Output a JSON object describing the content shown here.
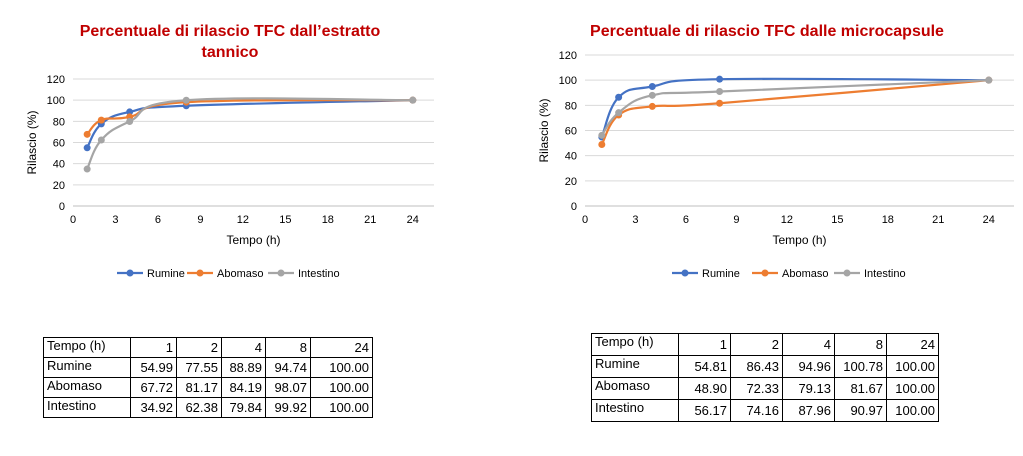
{
  "chart_data": [
    {
      "type": "line",
      "title": "Percentuale di rilascio TFC dall’estratto tannico",
      "xlabel": "Tempo (h)",
      "ylabel": "Rilascio (%)",
      "xlim": [
        0,
        25.5
      ],
      "ylim": [
        0,
        120
      ],
      "xticks": [
        "0",
        "3",
        "6",
        "9",
        "12",
        "15",
        "18",
        "21",
        "24"
      ],
      "yticks": [
        "0",
        "20",
        "40",
        "60",
        "80",
        "100",
        "120"
      ],
      "grid": true,
      "legend_position": "bottom",
      "x": [
        1,
        2,
        4,
        8,
        24
      ],
      "series": [
        {
          "name": "Rumine",
          "color": "#4472c4",
          "values": [
            54.99,
            77.55,
            88.89,
            94.74,
            100.0
          ]
        },
        {
          "name": "Abomaso",
          "color": "#ed7d31",
          "values": [
            67.72,
            81.17,
            84.19,
            98.07,
            100.0
          ]
        },
        {
          "name": "Intestino",
          "color": "#a5a5a5",
          "values": [
            34.92,
            62.38,
            79.84,
            99.92,
            100.0
          ]
        }
      ]
    },
    {
      "type": "line",
      "title": "Percentuale di rilascio TFC dalle microcapsule",
      "xlabel": "Tempo (h)",
      "ylabel": "Rilascio (%)",
      "xlim": [
        0,
        25.5
      ],
      "ylim": [
        0,
        120
      ],
      "xticks": [
        "0",
        "3",
        "6",
        "9",
        "12",
        "15",
        "18",
        "21",
        "24"
      ],
      "yticks": [
        "0",
        "20",
        "40",
        "60",
        "80",
        "100",
        "120"
      ],
      "grid": true,
      "legend_position": "bottom",
      "x": [
        1,
        2,
        4,
        8,
        24
      ],
      "series": [
        {
          "name": "Rumine",
          "color": "#4472c4",
          "values": [
            54.81,
            86.43,
            94.96,
            100.78,
            100.0
          ]
        },
        {
          "name": "Abomaso",
          "color": "#ed7d31",
          "values": [
            48.9,
            72.33,
            79.13,
            81.67,
            100.0
          ]
        },
        {
          "name": "Intestino",
          "color": "#a5a5a5",
          "values": [
            56.17,
            74.16,
            87.96,
            90.97,
            100.0
          ]
        }
      ]
    }
  ],
  "tables": [
    {
      "header_label": "Tempo (h)",
      "columns": [
        "1",
        "2",
        "4",
        "8",
        "24"
      ],
      "rows": [
        {
          "label": "Rumine",
          "cells": [
            "54.99",
            "77.55",
            "88.89",
            "94.74",
            "100.00"
          ]
        },
        {
          "label": "Abomaso",
          "cells": [
            "67.72",
            "81.17",
            "84.19",
            "98.07",
            "100.00"
          ]
        },
        {
          "label": "Intestino",
          "cells": [
            "34.92",
            "62.38",
            "79.84",
            "99.92",
            "100.00"
          ]
        }
      ]
    },
    {
      "header_label": "Tempo (h)",
      "columns": [
        "1",
        "2",
        "4",
        "8",
        "24"
      ],
      "rows": [
        {
          "label": "Rumine",
          "cells": [
            "54.81",
            "86.43",
            "94.96",
            "100.78",
            "100.00"
          ]
        },
        {
          "label": "Abomaso",
          "cells": [
            "48.90",
            "72.33",
            "79.13",
            "81.67",
            "100.00"
          ]
        },
        {
          "label": "Intestino",
          "cells": [
            "56.17",
            "74.16",
            "87.96",
            "90.97",
            "100.00"
          ]
        }
      ]
    }
  ]
}
